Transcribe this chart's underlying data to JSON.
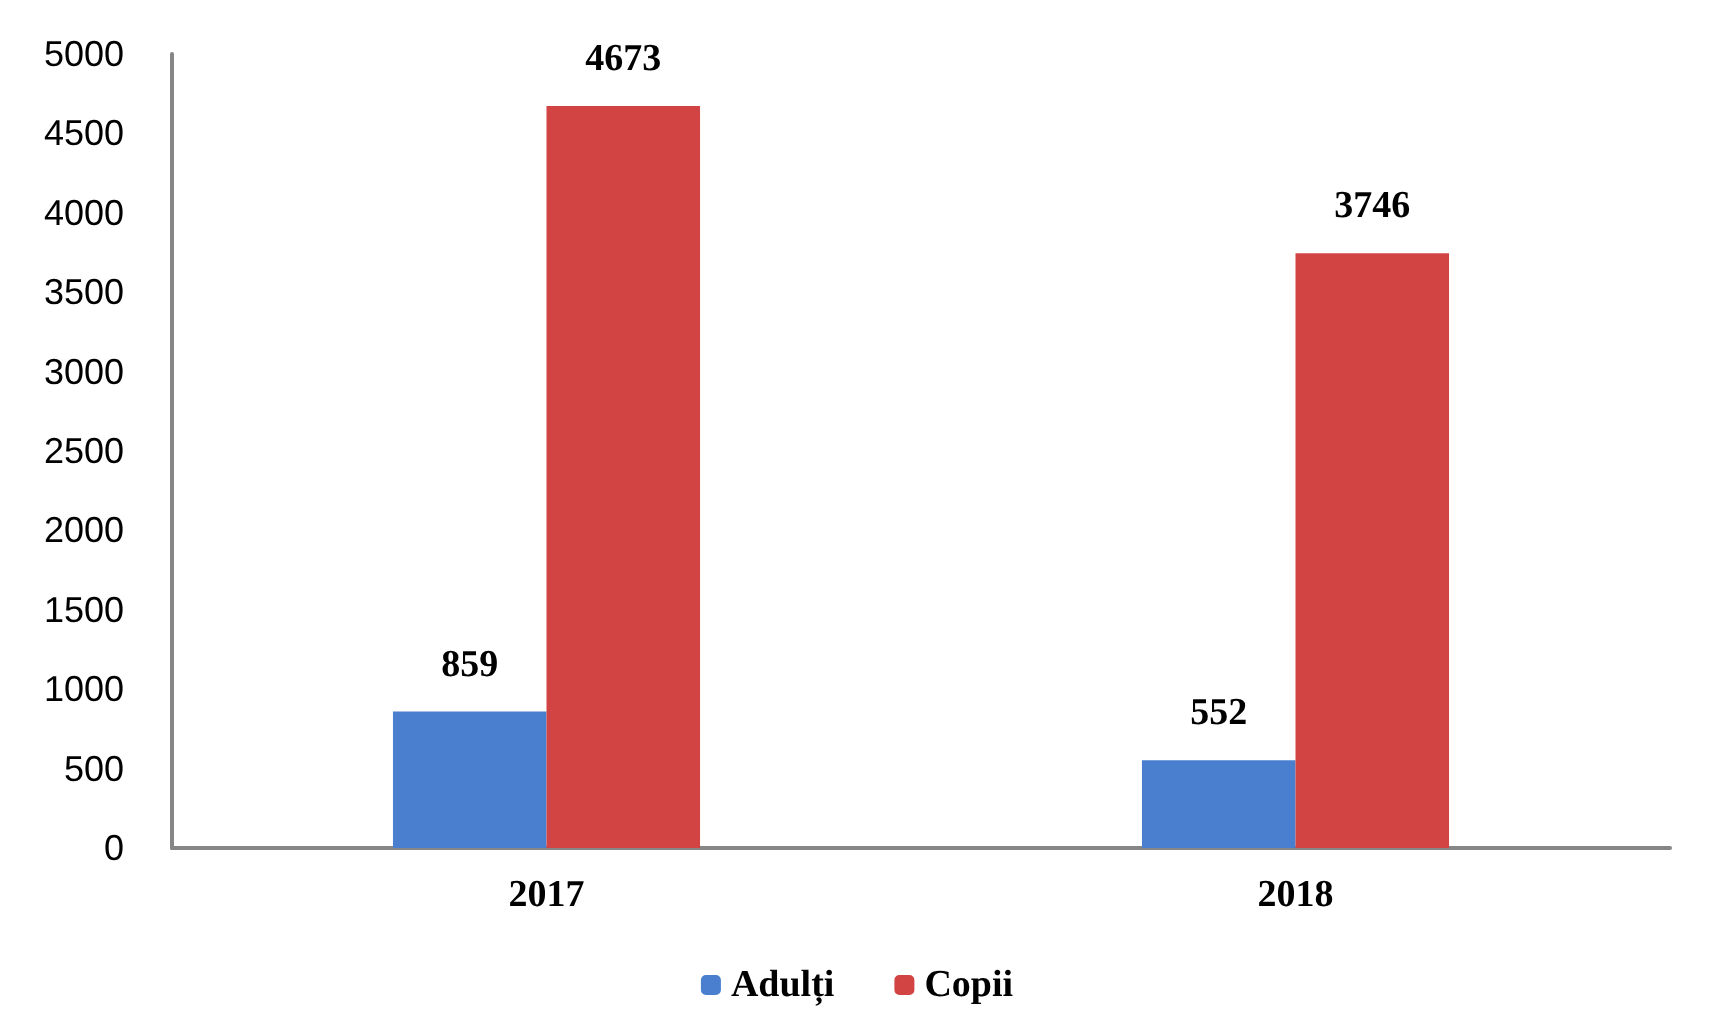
{
  "chart_data": {
    "type": "bar",
    "categories": [
      "2017",
      "2018"
    ],
    "series": [
      {
        "name": "Adulți",
        "color": "#4a7fd0",
        "values": [
          859,
          552
        ]
      },
      {
        "name": "Copii",
        "color": "#d24444",
        "values": [
          4673,
          3746
        ]
      }
    ],
    "ylim": [
      0,
      5000
    ],
    "yticks": [
      0,
      500,
      1000,
      1500,
      2000,
      2500,
      3000,
      3500,
      4000,
      4500,
      5000
    ],
    "grid": false,
    "legend": "bottom",
    "data_labels": true
  }
}
